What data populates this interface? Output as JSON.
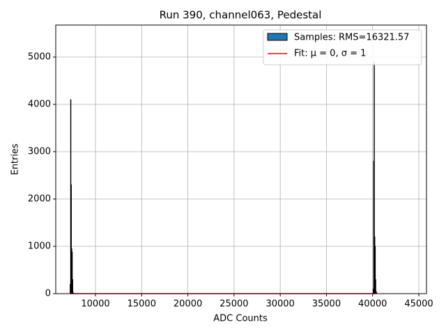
{
  "chart_data": {
    "type": "histogram",
    "title": "Run 390, channel063, Pedestal",
    "xlabel": "ADC Counts",
    "ylabel": "Entries",
    "name": "Samples: RMS=16321.57",
    "color": "#1f77b4",
    "edgecolor": "#000000",
    "bins": [
      7250,
      7300,
      7350,
      7400,
      7450,
      7500,
      7550,
      7600,
      40050,
      40100,
      40150,
      40200,
      40250,
      40300,
      40350,
      40400,
      40450
    ],
    "counts": [
      200,
      4100,
      2300,
      950,
      880,
      300,
      30,
      0,
      100,
      2800,
      4900,
      1200,
      1000,
      300,
      50,
      20
    ],
    "fit": {
      "name": "Fit: μ = 0, σ = 1",
      "color": "#ff0000",
      "x": [
        7300,
        40400
      ],
      "values": [
        0,
        0
      ]
    },
    "xlim": [
      5700,
      45830
    ],
    "ylim": [
      0,
      5676
    ],
    "xticks": [
      10000,
      15000,
      20000,
      25000,
      30000,
      35000,
      40000,
      45000
    ],
    "yticks": [
      0,
      1000,
      2000,
      3000,
      4000,
      5000
    ],
    "grid": true,
    "legend": "upper right"
  }
}
